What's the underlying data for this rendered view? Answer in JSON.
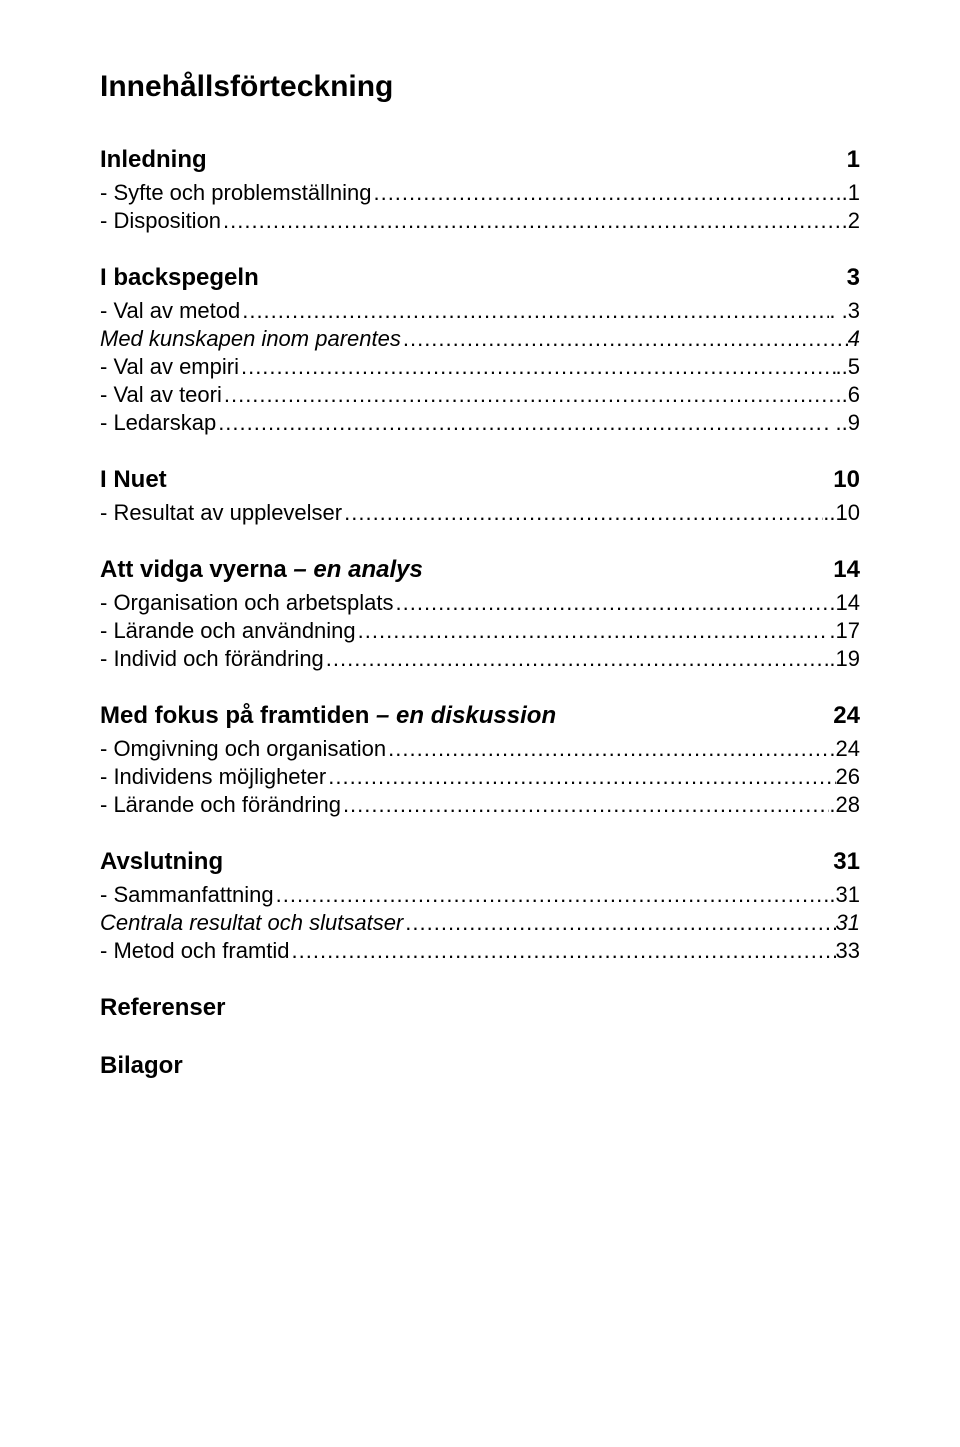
{
  "title": "Innehållsförteckning",
  "sections": [
    {
      "heading": {
        "label": "Inledning",
        "page": "1",
        "italic": false,
        "leaderGap": true
      },
      "lines": [
        {
          "label": "- Syfte och problemställning",
          "page": "..1",
          "italic": false
        },
        {
          "label": "- Disposition",
          "page": ".2",
          "italic": false
        }
      ]
    },
    {
      "heading": {
        "label": "I backspegeln",
        "page": "3",
        "italic": false,
        "leaderGap": true
      },
      "lines": [
        {
          "label": "- Val av metod",
          "page": ". .3",
          "italic": false
        },
        {
          "label": "   Med kunskapen inom parentes",
          "page": "4",
          "italic": true
        },
        {
          "label": "- Val av empiri",
          "page": "..5",
          "italic": false
        },
        {
          "label": "- Val av teori",
          "page": ".6",
          "italic": false
        },
        {
          "label": "- Ledarskap",
          "page": ". ..9",
          "italic": false
        }
      ]
    },
    {
      "heading": {
        "label": "I Nuet",
        "page": "10",
        "italic": false,
        "leaderGap": true
      },
      "lines": [
        {
          "label": "- Resultat av upplevelser",
          "page": "..10",
          "italic": false
        }
      ]
    },
    {
      "heading": {
        "label": "Att vidga vyerna",
        "tail": " – en analys",
        "page": "14",
        "italic": true,
        "leaderGap": true
      },
      "lines": [
        {
          "label": "- Organisation och arbetsplats",
          "page": " 14",
          "italic": false
        },
        {
          "label": "- Lärande och användning",
          "page": ".17",
          "italic": false
        },
        {
          "label": "- Individ och förändring",
          "page": ".19",
          "italic": false
        }
      ]
    },
    {
      "heading": {
        "label": "Med fokus på framtiden",
        "tail": " – en diskussion",
        "page": "24",
        "italic": true,
        "leaderGap": true
      },
      "lines": [
        {
          "label": "- Omgivning och organisation",
          "page": ".24",
          "italic": false
        },
        {
          "label": "- Individens möjligheter",
          "page": "26",
          "italic": false
        },
        {
          "label": "- Lärande och förändring",
          "page": ".28",
          "italic": false
        }
      ]
    },
    {
      "heading": {
        "label": "Avslutning",
        "page": "31",
        "italic": false,
        "leaderGap": true
      },
      "lines": [
        {
          "label": "- Sammanfattning",
          "page": "..31",
          "italic": false
        },
        {
          "label": "   Centrala resultat och slutsatser",
          "page": " 31",
          "italic": true
        },
        {
          "label": "- Metod och framtid",
          "page": "33",
          "italic": false
        }
      ]
    },
    {
      "heading": {
        "label": "Referenser",
        "page": "",
        "italic": false,
        "standalone": true
      }
    },
    {
      "heading": {
        "label": "Bilagor",
        "page": "",
        "italic": false,
        "standalone": true
      }
    }
  ]
}
